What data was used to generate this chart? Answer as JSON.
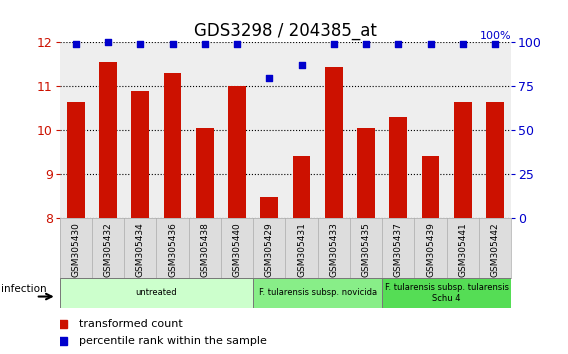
{
  "title": "GDS3298 / 204385_at",
  "categories": [
    "GSM305430",
    "GSM305432",
    "GSM305434",
    "GSM305436",
    "GSM305438",
    "GSM305440",
    "GSM305429",
    "GSM305431",
    "GSM305433",
    "GSM305435",
    "GSM305437",
    "GSM305439",
    "GSM305441",
    "GSM305442"
  ],
  "bar_values": [
    10.65,
    11.55,
    10.9,
    11.3,
    10.05,
    11.0,
    8.47,
    9.4,
    11.45,
    10.05,
    10.3,
    9.4,
    10.65,
    10.65
  ],
  "percentile_values": [
    99,
    100,
    99,
    99,
    99,
    99,
    80,
    87,
    99,
    99,
    99,
    99,
    99,
    99
  ],
  "bar_color": "#cc1100",
  "dot_color": "#0000cc",
  "ylim_left": [
    8,
    12
  ],
  "ylim_right": [
    0,
    100
  ],
  "yticks_left": [
    8,
    9,
    10,
    11,
    12
  ],
  "yticks_right": [
    0,
    25,
    50,
    75,
    100
  ],
  "groups": [
    {
      "label": "untreated",
      "start": 0,
      "end": 5,
      "color": "#ccffcc"
    },
    {
      "label": "F. tularensis subsp. novicida",
      "start": 6,
      "end": 9,
      "color": "#88ee88"
    },
    {
      "label": "F. tularensis subsp. tularensis\nSchu 4",
      "start": 10,
      "end": 13,
      "color": "#55dd55"
    }
  ],
  "infection_label": "infection",
  "legend_bar_label": "transformed count",
  "legend_dot_label": "percentile rank within the sample",
  "plot_bg_color": "#eeeeee",
  "title_fontsize": 12,
  "bar_width": 0.55
}
